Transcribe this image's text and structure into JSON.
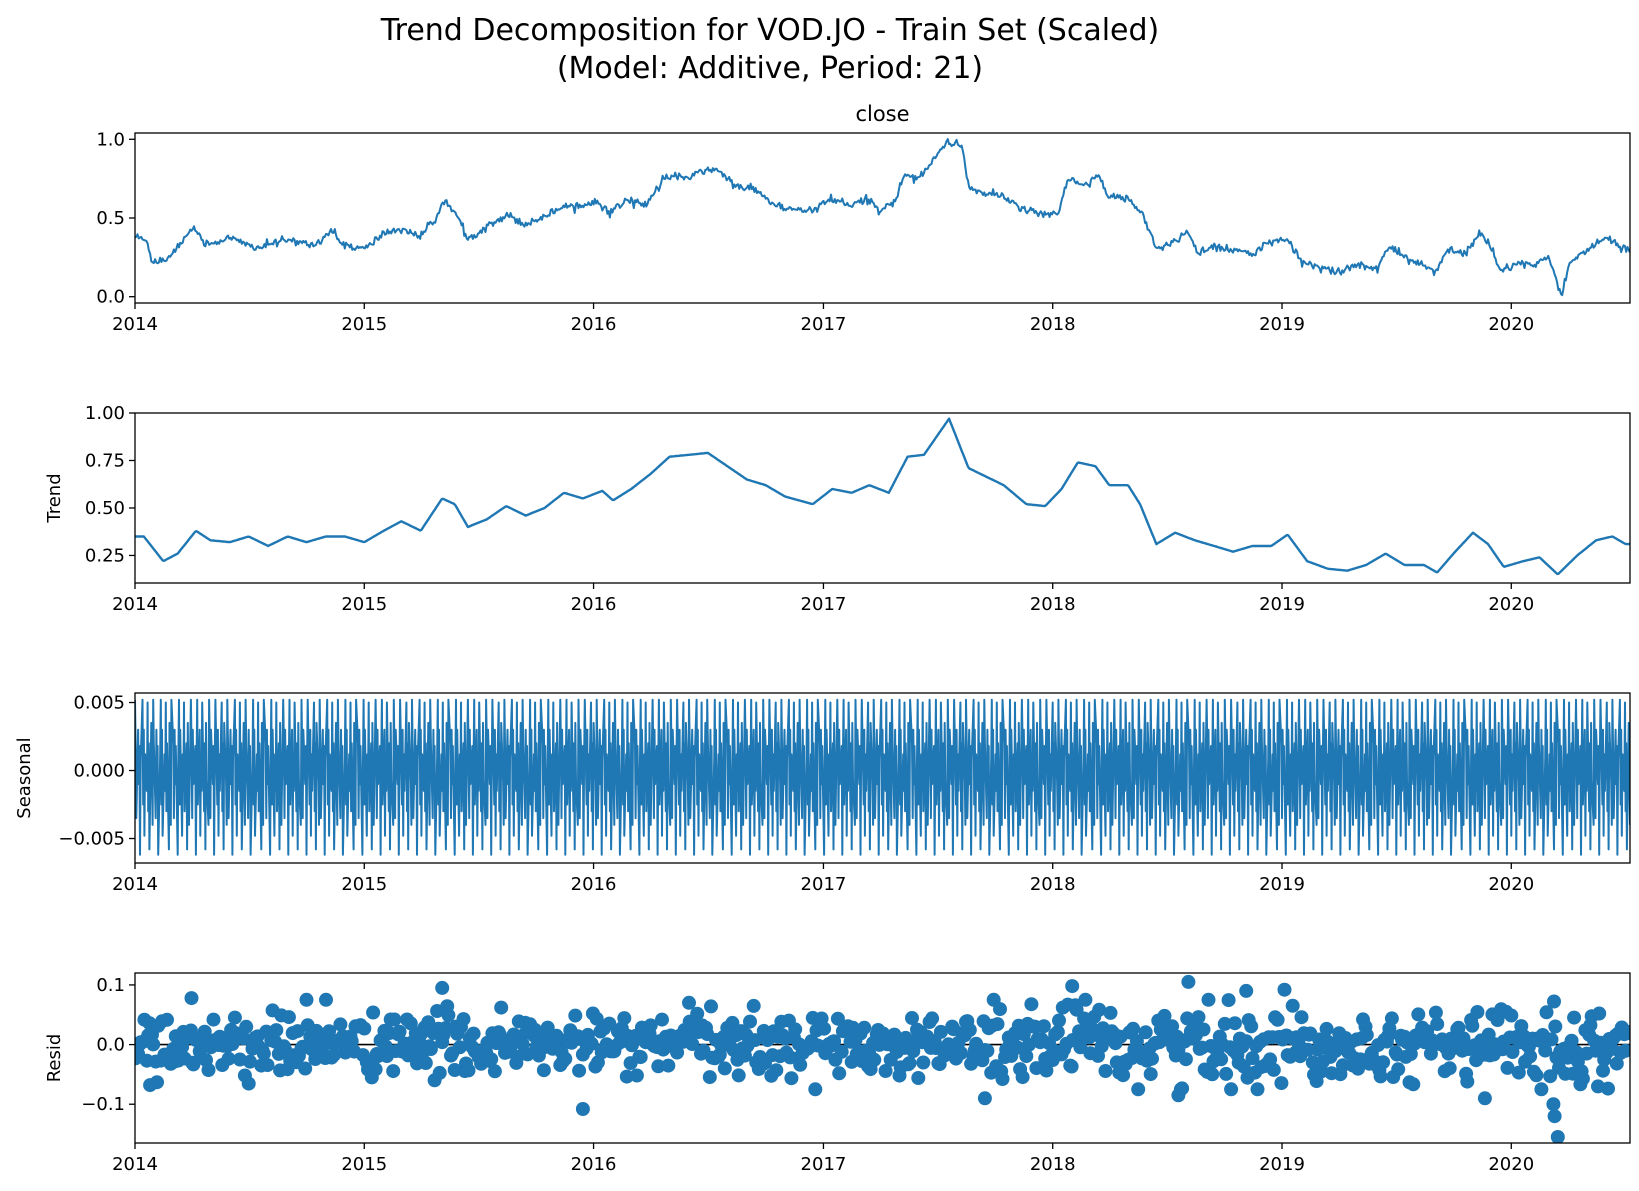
{
  "chart_data": {
    "suptitle_line1": "Trend Decomposition for VOD.JO - Train Set (Scaled)",
    "suptitle_line2": "(Model: Additive, Period: 21)",
    "line_color": "#1f77b4",
    "x_start": "2014-01-01",
    "x_end": "2020-07-08",
    "x_ticks": [
      "2014",
      "2015",
      "2016",
      "2017",
      "2018",
      "2019",
      "2020"
    ],
    "panels": [
      {
        "key": "close",
        "type": "line",
        "title": "close",
        "ylabel": "",
        "ylim": [
          -0.04,
          1.04
        ],
        "yticks": [
          0.0,
          0.5,
          1.0
        ],
        "ytick_labels": [
          "0.0",
          "0.5",
          "1.0"
        ],
        "series": [
          [
            "2014-01-01",
            0.38
          ],
          [
            "2014-01-20",
            0.36
          ],
          [
            "2014-01-28",
            0.22
          ],
          [
            "2014-02-20",
            0.24
          ],
          [
            "2014-03-15",
            0.34
          ],
          [
            "2014-04-05",
            0.45
          ],
          [
            "2014-04-20",
            0.33
          ],
          [
            "2014-06-01",
            0.37
          ],
          [
            "2014-07-15",
            0.31
          ],
          [
            "2014-09-01",
            0.36
          ],
          [
            "2014-10-15",
            0.33
          ],
          [
            "2014-11-10",
            0.42
          ],
          [
            "2014-12-01",
            0.33
          ],
          [
            "2015-01-01",
            0.3
          ],
          [
            "2015-02-01",
            0.4
          ],
          [
            "2015-03-01",
            0.43
          ],
          [
            "2015-04-01",
            0.38
          ],
          [
            "2015-04-25",
            0.5
          ],
          [
            "2015-05-08",
            0.62
          ],
          [
            "2015-05-25",
            0.54
          ],
          [
            "2015-06-15",
            0.36
          ],
          [
            "2015-07-15",
            0.45
          ],
          [
            "2015-08-15",
            0.52
          ],
          [
            "2015-09-15",
            0.46
          ],
          [
            "2015-10-20",
            0.52
          ],
          [
            "2015-11-15",
            0.58
          ],
          [
            "2015-12-20",
            0.58
          ],
          [
            "2016-01-05",
            0.62
          ],
          [
            "2016-01-25",
            0.53
          ],
          [
            "2016-02-25",
            0.62
          ],
          [
            "2016-03-25",
            0.58
          ],
          [
            "2016-04-25",
            0.77
          ],
          [
            "2016-05-25",
            0.75
          ],
          [
            "2016-06-25",
            0.8
          ],
          [
            "2016-07-15",
            0.81
          ],
          [
            "2016-08-15",
            0.7
          ],
          [
            "2016-09-15",
            0.68
          ],
          [
            "2016-10-15",
            0.58
          ],
          [
            "2016-11-15",
            0.55
          ],
          [
            "2016-12-15",
            0.55
          ],
          [
            "2017-01-15",
            0.62
          ],
          [
            "2017-02-15",
            0.58
          ],
          [
            "2017-03-15",
            0.62
          ],
          [
            "2017-04-01",
            0.55
          ],
          [
            "2017-04-25",
            0.6
          ],
          [
            "2017-05-10",
            0.78
          ],
          [
            "2017-06-01",
            0.75
          ],
          [
            "2017-06-25",
            0.88
          ],
          [
            "2017-07-20",
            0.98
          ],
          [
            "2017-08-10",
            0.96
          ],
          [
            "2017-08-20",
            0.7
          ],
          [
            "2017-09-15",
            0.65
          ],
          [
            "2017-10-15",
            0.64
          ],
          [
            "2017-11-15",
            0.55
          ],
          [
            "2017-12-15",
            0.52
          ],
          [
            "2018-01-10",
            0.52
          ],
          [
            "2018-01-25",
            0.75
          ],
          [
            "2018-02-25",
            0.7
          ],
          [
            "2018-03-15",
            0.77
          ],
          [
            "2018-04-01",
            0.62
          ],
          [
            "2018-05-01",
            0.63
          ],
          [
            "2018-05-25",
            0.52
          ],
          [
            "2018-06-15",
            0.3
          ],
          [
            "2018-07-15",
            0.35
          ],
          [
            "2018-08-05",
            0.42
          ],
          [
            "2018-08-20",
            0.28
          ],
          [
            "2018-09-15",
            0.32
          ],
          [
            "2018-10-15",
            0.3
          ],
          [
            "2018-11-15",
            0.27
          ],
          [
            "2018-12-15",
            0.35
          ],
          [
            "2019-01-10",
            0.36
          ],
          [
            "2019-02-01",
            0.22
          ],
          [
            "2019-03-01",
            0.19
          ],
          [
            "2019-04-01",
            0.16
          ],
          [
            "2019-05-01",
            0.2
          ],
          [
            "2019-06-01",
            0.18
          ],
          [
            "2019-06-20",
            0.32
          ],
          [
            "2019-07-15",
            0.25
          ],
          [
            "2019-08-15",
            0.2
          ],
          [
            "2019-09-01",
            0.15
          ],
          [
            "2019-09-25",
            0.3
          ],
          [
            "2019-10-20",
            0.27
          ],
          [
            "2019-11-10",
            0.4
          ],
          [
            "2019-11-25",
            0.36
          ],
          [
            "2019-12-15",
            0.16
          ],
          [
            "2020-01-10",
            0.22
          ],
          [
            "2020-02-10",
            0.2
          ],
          [
            "2020-03-01",
            0.25
          ],
          [
            "2020-03-15",
            0.08
          ],
          [
            "2020-03-22",
            0.01
          ],
          [
            "2020-04-01",
            0.2
          ],
          [
            "2020-04-20",
            0.27
          ],
          [
            "2020-05-15",
            0.33
          ],
          [
            "2020-06-01",
            0.38
          ],
          [
            "2020-06-20",
            0.32
          ],
          [
            "2020-07-08",
            0.29
          ]
        ]
      },
      {
        "key": "trend",
        "type": "line",
        "title": "",
        "ylabel": "Trend",
        "ylim": [
          0.105,
          1.0
        ],
        "yticks": [
          0.25,
          0.5,
          0.75,
          1.0
        ],
        "ytick_labels": [
          "0.25",
          "0.50",
          "0.75",
          "1.00"
        ],
        "series": [
          [
            "2014-01-15",
            0.35
          ],
          [
            "2014-02-15",
            0.22
          ],
          [
            "2014-03-10",
            0.26
          ],
          [
            "2014-04-08",
            0.38
          ],
          [
            "2014-05-01",
            0.33
          ],
          [
            "2014-06-01",
            0.32
          ],
          [
            "2014-07-01",
            0.35
          ],
          [
            "2014-08-01",
            0.3
          ],
          [
            "2014-09-01",
            0.35
          ],
          [
            "2014-10-01",
            0.32
          ],
          [
            "2014-11-01",
            0.35
          ],
          [
            "2014-12-01",
            0.35
          ],
          [
            "2015-01-01",
            0.32
          ],
          [
            "2015-02-01",
            0.38
          ],
          [
            "2015-03-01",
            0.43
          ],
          [
            "2015-04-01",
            0.38
          ],
          [
            "2015-05-05",
            0.55
          ],
          [
            "2015-05-25",
            0.52
          ],
          [
            "2015-06-15",
            0.4
          ],
          [
            "2015-07-15",
            0.44
          ],
          [
            "2015-08-15",
            0.51
          ],
          [
            "2015-09-15",
            0.46
          ],
          [
            "2015-10-15",
            0.5
          ],
          [
            "2015-11-15",
            0.58
          ],
          [
            "2015-12-15",
            0.55
          ],
          [
            "2016-01-15",
            0.59
          ],
          [
            "2016-02-01",
            0.54
          ],
          [
            "2016-03-01",
            0.6
          ],
          [
            "2016-04-01",
            0.68
          ],
          [
            "2016-05-01",
            0.77
          ],
          [
            "2016-06-01",
            0.78
          ],
          [
            "2016-07-01",
            0.79
          ],
          [
            "2016-08-01",
            0.72
          ],
          [
            "2016-09-01",
            0.65
          ],
          [
            "2016-10-01",
            0.62
          ],
          [
            "2016-11-01",
            0.56
          ],
          [
            "2016-12-15",
            0.52
          ],
          [
            "2017-01-15",
            0.6
          ],
          [
            "2017-02-15",
            0.58
          ],
          [
            "2017-03-15",
            0.62
          ],
          [
            "2017-04-15",
            0.58
          ],
          [
            "2017-05-15",
            0.77
          ],
          [
            "2017-06-10",
            0.78
          ],
          [
            "2017-07-20",
            0.97
          ],
          [
            "2017-08-20",
            0.71
          ],
          [
            "2017-09-20",
            0.66
          ],
          [
            "2017-10-15",
            0.62
          ],
          [
            "2017-11-20",
            0.52
          ],
          [
            "2017-12-20",
            0.51
          ],
          [
            "2018-01-15",
            0.6
          ],
          [
            "2018-02-10",
            0.74
          ],
          [
            "2018-03-10",
            0.72
          ],
          [
            "2018-04-01",
            0.62
          ],
          [
            "2018-05-01",
            0.62
          ],
          [
            "2018-05-20",
            0.52
          ],
          [
            "2018-06-15",
            0.31
          ],
          [
            "2018-07-15",
            0.37
          ],
          [
            "2018-08-15",
            0.33
          ],
          [
            "2018-09-15",
            0.3
          ],
          [
            "2018-10-15",
            0.27
          ],
          [
            "2018-11-15",
            0.3
          ],
          [
            "2018-12-15",
            0.3
          ],
          [
            "2019-01-10",
            0.36
          ],
          [
            "2019-02-10",
            0.22
          ],
          [
            "2019-03-15",
            0.18
          ],
          [
            "2019-04-15",
            0.17
          ],
          [
            "2019-05-15",
            0.2
          ],
          [
            "2019-06-15",
            0.26
          ],
          [
            "2019-07-15",
            0.2
          ],
          [
            "2019-08-15",
            0.2
          ],
          [
            "2019-09-05",
            0.16
          ],
          [
            "2019-10-01",
            0.26
          ],
          [
            "2019-11-01",
            0.37
          ],
          [
            "2019-11-25",
            0.31
          ],
          [
            "2019-12-20",
            0.19
          ],
          [
            "2020-01-20",
            0.22
          ],
          [
            "2020-02-15",
            0.24
          ],
          [
            "2020-03-15",
            0.15
          ],
          [
            "2020-04-15",
            0.25
          ],
          [
            "2020-05-15",
            0.33
          ],
          [
            "2020-06-10",
            0.35
          ],
          [
            "2020-07-01",
            0.31
          ]
        ]
      },
      {
        "key": "seasonal",
        "type": "line",
        "title": "",
        "ylabel": "Seasonal",
        "ylim": [
          -0.0068,
          0.0057
        ],
        "yticks": [
          -0.005,
          0.0,
          0.005
        ],
        "ytick_labels": [
          "−0.005",
          "0.000",
          "0.005"
        ],
        "period_pattern": [
          0.0052,
          0.002,
          -0.0035,
          0.003,
          -0.001,
          0.0018,
          -0.0062,
          0.0008,
          0.0052,
          -0.0025,
          0.003,
          -0.0048,
          0.0012,
          -0.0015,
          0.005,
          -0.003,
          0.002,
          -0.0058,
          0.0035,
          -0.0008,
          -0.004
        ]
      },
      {
        "key": "resid",
        "type": "scatter",
        "title": "",
        "ylabel": "Resid",
        "ylim": [
          -0.165,
          0.12
        ],
        "yticks": [
          -0.1,
          0.0,
          0.1
        ],
        "ytick_labels": [
          "−0.1",
          "0.0",
          "0.1"
        ],
        "outliers": [
          [
            "2015-05-05",
            0.095
          ],
          [
            "2015-12-15",
            -0.108
          ],
          [
            "2018-08-05",
            0.105
          ],
          [
            "2018-02-01",
            0.098
          ],
          [
            "2018-11-05",
            0.09
          ],
          [
            "2019-01-05",
            0.092
          ],
          [
            "2020-03-15",
            -0.155
          ],
          [
            "2020-03-10",
            -0.12
          ],
          [
            "2020-03-08",
            -0.1
          ],
          [
            "2019-11-20",
            -0.09
          ],
          [
            "2017-09-15",
            -0.09
          ],
          [
            "2018-07-20",
            -0.085
          ],
          [
            "2014-04-01",
            0.078
          ],
          [
            "2014-11-01",
            0.075
          ],
          [
            "2016-06-01",
            0.07
          ],
          [
            "2014-01-25",
            -0.068
          ]
        ]
      }
    ]
  }
}
